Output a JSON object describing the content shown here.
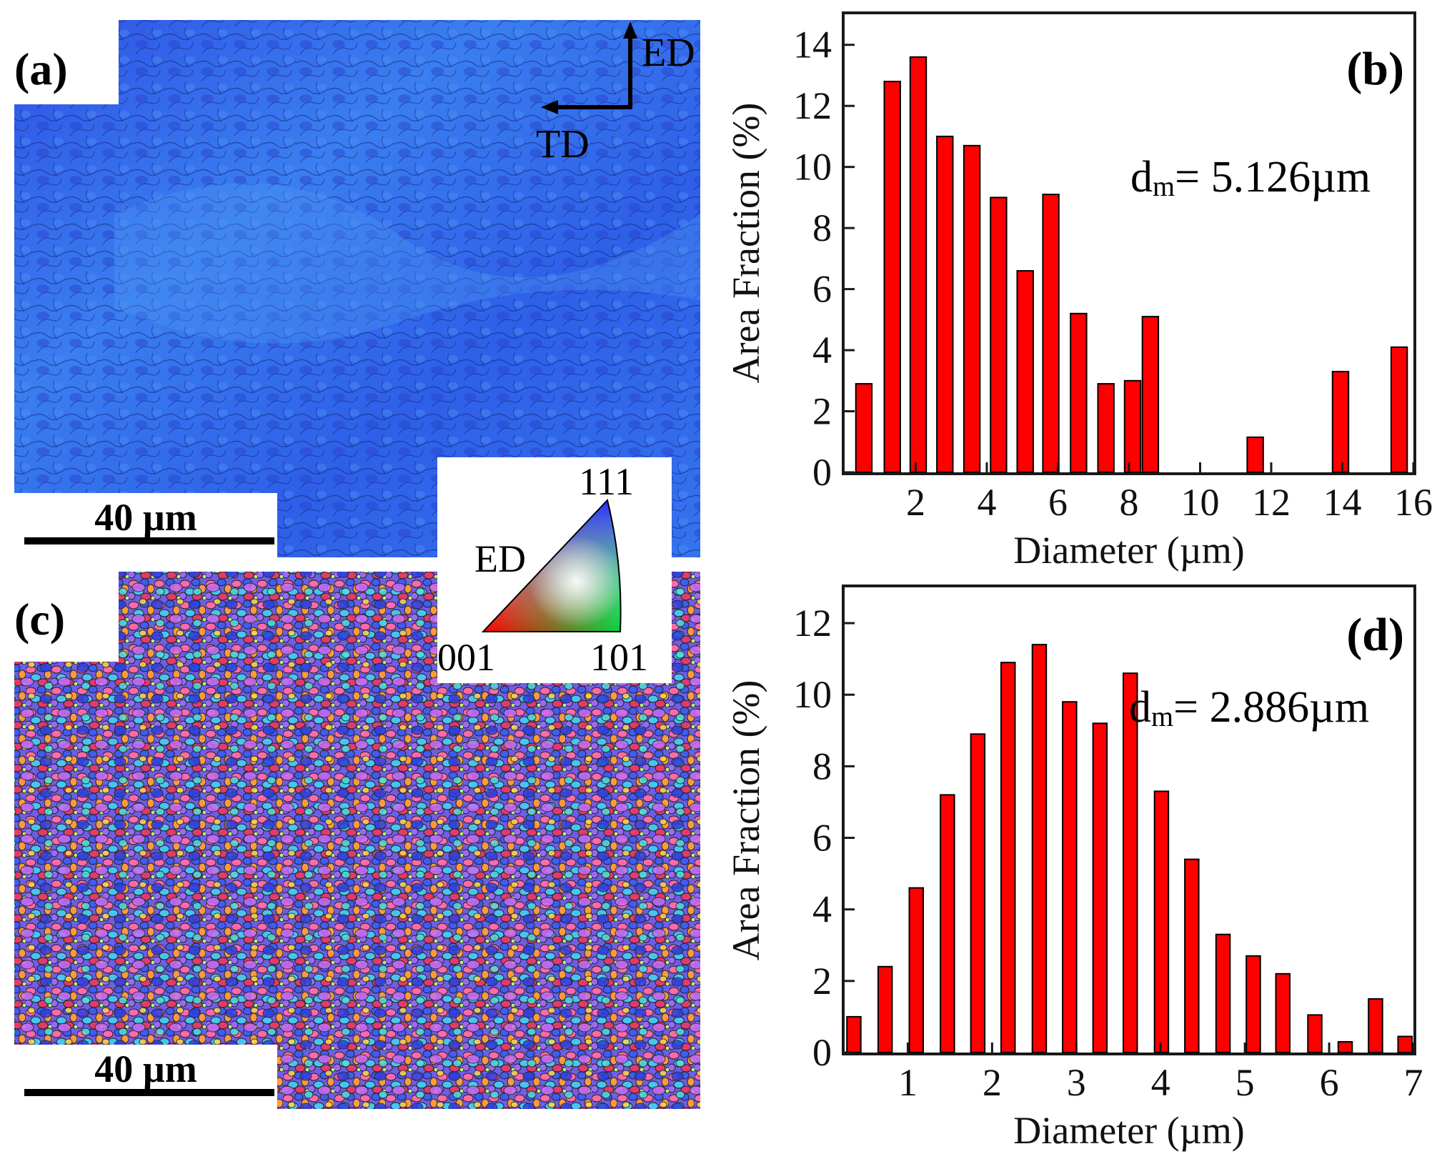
{
  "panel_a": {
    "label": "(a)",
    "scale_bar": "40 µm",
    "axis_up": "ED",
    "axis_left": "TD"
  },
  "panel_c": {
    "label": "(c)",
    "scale_bar": "40 µm"
  },
  "ipf_legend": {
    "direction": "ED",
    "corner_top": "111",
    "corner_left": "001",
    "corner_right": "101"
  },
  "colors": {
    "bar_fill": "#ff0000",
    "bar_stroke": "#000000",
    "frame": "#1a1a1a"
  },
  "chart_data": [
    {
      "type": "bar",
      "panel_label": "(b)",
      "annotation": "dm= 5.126µm",
      "annotation_base": "d",
      "annotation_sub": "m",
      "annotation_rest": "= 5.126µm",
      "xlabel": "Diameter (µm)",
      "ylabel": "Area Fraction (%)",
      "xlim": [
        0,
        16
      ],
      "ylim": [
        0,
        15
      ],
      "xticks": [
        2,
        4,
        6,
        8,
        10,
        12,
        14,
        16
      ],
      "yticks": [
        0,
        2,
        4,
        6,
        8,
        10,
        12,
        14
      ],
      "bar_width": 0.45,
      "x": [
        0.54,
        1.34,
        2.07,
        2.82,
        3.58,
        4.33,
        5.08,
        5.8,
        6.58,
        7.35,
        8.1,
        8.6,
        9.33,
        11.55,
        13.95,
        15.6
      ],
      "values": [
        2.9,
        12.8,
        13.6,
        11.0,
        10.7,
        9.0,
        6.6,
        9.1,
        5.2,
        2.9,
        3.0,
        5.1,
        0.0,
        1.15,
        3.3,
        4.1
      ]
    },
    {
      "type": "bar",
      "panel_label": "(d)",
      "annotation": "dm= 2.886µm",
      "annotation_base": "d",
      "annotation_sub": "m",
      "annotation_rest": "= 2.886µm",
      "xlabel": "Diameter (µm)",
      "ylabel": "Area Fraction (%)",
      "xlim": [
        0.25,
        7.0
      ],
      "ylim": [
        0,
        13
      ],
      "xticks": [
        1,
        2,
        3,
        4,
        5,
        6,
        7
      ],
      "yticks": [
        0,
        2,
        4,
        6,
        8,
        10,
        12
      ],
      "bar_width": 0.165,
      "x": [
        0.36,
        0.73,
        1.1,
        1.47,
        1.83,
        2.19,
        2.56,
        2.92,
        3.28,
        3.64,
        4.01,
        4.37,
        4.74,
        5.1,
        5.45,
        5.83,
        6.19,
        6.55,
        6.9
      ],
      "values": [
        1.0,
        2.4,
        4.6,
        7.2,
        8.9,
        10.9,
        11.4,
        9.8,
        9.2,
        10.6,
        7.3,
        5.4,
        3.3,
        2.7,
        2.2,
        1.05,
        0.3,
        1.5,
        0.45
      ]
    }
  ]
}
